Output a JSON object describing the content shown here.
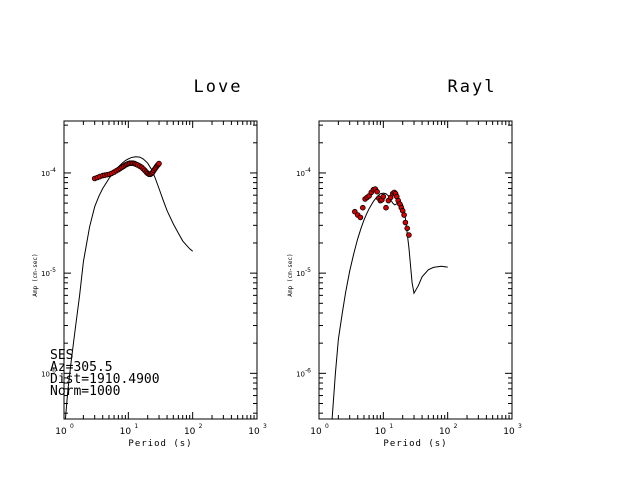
{
  "chart_data": [
    {
      "type": "scatter",
      "title": "Love",
      "xlabel": "Period (s)",
      "ylabel": "Amp (cm-sec)",
      "x_scale": "log",
      "y_scale": "log",
      "xlim": [
        1,
        1000
      ],
      "ylim": [
        3.5e-07,
        0.00033
      ],
      "x_ticks": [
        {
          "value": 1,
          "base": "10",
          "exp": "0"
        },
        {
          "value": 10,
          "base": "10",
          "exp": "1"
        },
        {
          "value": 100,
          "base": "10",
          "exp": "2"
        },
        {
          "value": 1000,
          "base": "10",
          "exp": "3"
        }
      ],
      "y_ticks": [
        {
          "value": 1e-06,
          "base": "10",
          "exp": "-6"
        },
        {
          "value": 1e-05,
          "base": "10",
          "exp": "-5"
        },
        {
          "value": 0.0001,
          "base": "10",
          "exp": "-4"
        }
      ],
      "annotations": [
        "SES",
        "Az=305.5",
        "Dist=1910.4900",
        "Norm=1000"
      ],
      "series": [
        {
          "kind": "line",
          "x": [
            1.05,
            1.15,
            1.3,
            1.5,
            1.75,
            2.0,
            2.5,
            3.0,
            3.5,
            4.0,
            5.0,
            6.0,
            7.0,
            8.0,
            9.0,
            10.0,
            11.0,
            12.0,
            13.0,
            15.0,
            17.0,
            20.0,
            23.0,
            26.0,
            30.0,
            35.0,
            40.0,
            50.0,
            60.0,
            70.0,
            80.0,
            90.0,
            100.0
          ],
          "values": [
            3.5e-07,
            6.8e-07,
            1.35e-06,
            2.8e-06,
            6e-06,
            1.3e-05,
            2.9e-05,
            4.6e-05,
            5.9e-05,
            7e-05,
            8.8e-05,
            0.000103,
            0.000115,
            0.000125,
            0.000133,
            0.000138,
            0.000142,
            0.000144,
            0.000145,
            0.000144,
            0.000138,
            0.000125,
            0.000108,
            9e-05,
            7e-05,
            5.3e-05,
            4.2e-05,
            3.1e-05,
            2.5e-05,
            2.1e-05,
            1.9e-05,
            1.75e-05,
            1.65e-05
          ]
        },
        {
          "kind": "scatter",
          "x": [
            3.0,
            3.3,
            3.6,
            4.0,
            4.3,
            4.7,
            5.1,
            5.5,
            6.0,
            6.5,
            7.0,
            7.5,
            8.0,
            8.5,
            9.0,
            9.5,
            10.0,
            10.6,
            11.2,
            11.8,
            12.5,
            13.2,
            14.0,
            15.0,
            16.0,
            17.0,
            18.0,
            19.0,
            20.0,
            21.0,
            22.0,
            23.0,
            24.0,
            25.0,
            26.0,
            27.0,
            28.0,
            29.0,
            30.0
          ],
          "values": [
            8.8e-05,
            9e-05,
            9.2e-05,
            9.4e-05,
            9.5e-05,
            9.6e-05,
            9.7e-05,
            9.9e-05,
            0.000102,
            0.000105,
            0.000108,
            0.000111,
            0.000114,
            0.000117,
            0.00012,
            0.000122,
            0.000124,
            0.000125,
            0.000125,
            0.000125,
            0.000124,
            0.000122,
            0.00012,
            0.000117,
            0.000114,
            0.00011,
            0.000106,
            0.000102,
            9.9e-05,
            9.7e-05,
            9.7e-05,
            9.9e-05,
            0.000102,
            0.000106,
            0.00011,
            0.000114,
            0.000118,
            0.000121,
            0.000124
          ]
        }
      ]
    },
    {
      "type": "scatter",
      "title": "Rayl",
      "xlabel": "Period (s)",
      "ylabel": "Amp (cm-sec)",
      "x_scale": "log",
      "y_scale": "log",
      "xlim": [
        1,
        1000
      ],
      "ylim": [
        3.5e-07,
        0.00033
      ],
      "x_ticks": [
        {
          "value": 1,
          "base": "10",
          "exp": "0"
        },
        {
          "value": 10,
          "base": "10",
          "exp": "1"
        },
        {
          "value": 100,
          "base": "10",
          "exp": "2"
        },
        {
          "value": 1000,
          "base": "10",
          "exp": "3"
        }
      ],
      "y_ticks": [
        {
          "value": 1e-06,
          "base": "10",
          "exp": "-6"
        },
        {
          "value": 1e-05,
          "base": "10",
          "exp": "-5"
        },
        {
          "value": 0.0001,
          "base": "10",
          "exp": "-4"
        }
      ],
      "series": [
        {
          "kind": "line",
          "x": [
            1.6,
            1.8,
            2.0,
            2.3,
            2.6,
            3.0,
            3.5,
            4.0,
            4.5,
            5.0,
            5.5,
            6.0,
            7.0,
            8.0,
            9.0,
            10.0,
            11.0,
            12.0,
            13.0,
            14.0,
            15.0,
            16.0,
            17.0,
            18.0,
            20.0,
            22.0,
            25.0,
            28.0,
            30.0,
            35.0,
            40.0,
            50.0,
            60.0,
            70.0,
            80.0,
            90.0,
            100.0
          ],
          "values": [
            3.5e-07,
            1e-06,
            2.2e-06,
            4e-06,
            6.5e-06,
            1.05e-05,
            1.6e-05,
            2.2e-05,
            2.8e-05,
            3.4e-05,
            3.9e-05,
            4.4e-05,
            5.2e-05,
            5.8e-05,
            6.2e-05,
            6.3e-05,
            6.2e-05,
            5.9e-05,
            5.4e-05,
            5e-05,
            4.8e-05,
            4.9e-05,
            5.1e-05,
            5.2e-05,
            4.8e-05,
            3.5e-05,
            1.8e-05,
            8e-06,
            6.3e-06,
            7.5e-06,
            9.2e-06,
            1.08e-05,
            1.14e-05,
            1.16e-05,
            1.17e-05,
            1.16e-05,
            1.15e-05
          ]
        },
        {
          "kind": "scatter",
          "x": [
            3.6,
            4.0,
            4.4,
            4.8,
            5.2,
            5.6,
            6.0,
            6.5,
            7.0,
            7.5,
            8.0,
            8.5,
            9.0,
            9.5,
            10.0,
            11.0,
            12.0,
            13.0,
            14.0,
            14.8,
            15.5,
            16.2,
            17.0,
            18.0,
            19.0,
            20.0,
            21.0,
            22.0,
            23.5,
            25.0
          ],
          "values": [
            4.1e-05,
            3.8e-05,
            3.6e-05,
            4.5e-05,
            5.5e-05,
            5.7e-05,
            5.9e-05,
            6.4e-05,
            6.8e-05,
            6.9e-05,
            6.5e-05,
            5.6e-05,
            5.3e-05,
            5.4e-05,
            5.8e-05,
            4.5e-05,
            5.3e-05,
            5.7e-05,
            6.2e-05,
            6.4e-05,
            6.2e-05,
            5.8e-05,
            5.3e-05,
            4.9e-05,
            4.5e-05,
            4.2e-05,
            3.8e-05,
            3.2e-05,
            2.8e-05,
            2.4e-05
          ]
        }
      ]
    }
  ]
}
